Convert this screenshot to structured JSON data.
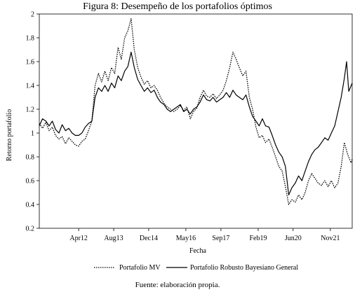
{
  "figure": {
    "title": "Figura 8: Desempeño de los portafolios óptimos",
    "source": "Fuente: elaboración propia."
  },
  "chart_data": {
    "type": "line",
    "title": "Figura 8: Desempeño de los portafolios óptimos",
    "xlabel": "Fecha",
    "ylabel": "Retorno portafolio",
    "ylim": [
      0.2,
      2.0
    ],
    "yticks": [
      0.2,
      0.4,
      0.6,
      0.8,
      1,
      1.2,
      1.4,
      1.6,
      1.8,
      2
    ],
    "xlim": [
      "2010-10-01",
      "2022-09-01"
    ],
    "xticks": [
      {
        "date": "2012-04-01",
        "label": "Apr12"
      },
      {
        "date": "2013-08-01",
        "label": "Aug13"
      },
      {
        "date": "2014-12-01",
        "label": "Dec14"
      },
      {
        "date": "2016-05-01",
        "label": "May16"
      },
      {
        "date": "2017-09-01",
        "label": "Sep17"
      },
      {
        "date": "2019-02-01",
        "label": "Feb19"
      },
      {
        "date": "2020-06-01",
        "label": "Jun20"
      },
      {
        "date": "2021-11-01",
        "label": "Nov21"
      }
    ],
    "grid": false,
    "legend_position": "bottom-center",
    "series": [
      {
        "name": "Portafolio MV",
        "style": "dotted",
        "color": "#000000",
        "points": [
          [
            "2010-10-01",
            1.08
          ],
          [
            "2010-11-15",
            1.04
          ],
          [
            "2011-01-01",
            1.09
          ],
          [
            "2011-02-15",
            1.02
          ],
          [
            "2011-04-01",
            1.05
          ],
          [
            "2011-05-15",
            0.98
          ],
          [
            "2011-07-01",
            0.95
          ],
          [
            "2011-08-15",
            0.97
          ],
          [
            "2011-10-01",
            0.91
          ],
          [
            "2011-11-15",
            0.96
          ],
          [
            "2012-01-01",
            0.93
          ],
          [
            "2012-02-15",
            0.9
          ],
          [
            "2012-04-01",
            0.89
          ],
          [
            "2012-05-15",
            0.93
          ],
          [
            "2012-07-01",
            0.95
          ],
          [
            "2012-08-15",
            1.02
          ],
          [
            "2012-10-01",
            1.1
          ],
          [
            "2012-11-15",
            1.4
          ],
          [
            "2013-01-01",
            1.5
          ],
          [
            "2013-02-15",
            1.43
          ],
          [
            "2013-04-01",
            1.52
          ],
          [
            "2013-05-15",
            1.44
          ],
          [
            "2013-07-01",
            1.55
          ],
          [
            "2013-08-15",
            1.5
          ],
          [
            "2013-10-01",
            1.72
          ],
          [
            "2013-11-15",
            1.62
          ],
          [
            "2014-01-01",
            1.8
          ],
          [
            "2014-02-15",
            1.86
          ],
          [
            "2014-04-01",
            1.96
          ],
          [
            "2014-05-15",
            1.7
          ],
          [
            "2014-07-01",
            1.55
          ],
          [
            "2014-08-15",
            1.47
          ],
          [
            "2014-10-01",
            1.41
          ],
          [
            "2014-11-15",
            1.44
          ],
          [
            "2015-01-01",
            1.38
          ],
          [
            "2015-02-15",
            1.4
          ],
          [
            "2015-04-01",
            1.36
          ],
          [
            "2015-05-15",
            1.3
          ],
          [
            "2015-07-01",
            1.25
          ],
          [
            "2015-08-15",
            1.22
          ],
          [
            "2015-10-01",
            1.2
          ],
          [
            "2015-11-15",
            1.18
          ],
          [
            "2016-01-01",
            1.2
          ],
          [
            "2016-02-15",
            1.23
          ],
          [
            "2016-04-01",
            1.19
          ],
          [
            "2016-05-15",
            1.22
          ],
          [
            "2016-07-01",
            1.12
          ],
          [
            "2016-08-15",
            1.18
          ],
          [
            "2016-10-01",
            1.21
          ],
          [
            "2016-11-15",
            1.3
          ],
          [
            "2017-01-01",
            1.36
          ],
          [
            "2017-02-15",
            1.31
          ],
          [
            "2017-04-01",
            1.3
          ],
          [
            "2017-05-15",
            1.33
          ],
          [
            "2017-07-01",
            1.29
          ],
          [
            "2017-08-15",
            1.32
          ],
          [
            "2017-10-01",
            1.36
          ],
          [
            "2017-11-15",
            1.44
          ],
          [
            "2018-01-01",
            1.55
          ],
          [
            "2018-02-15",
            1.68
          ],
          [
            "2018-04-01",
            1.62
          ],
          [
            "2018-05-15",
            1.55
          ],
          [
            "2018-07-01",
            1.48
          ],
          [
            "2018-08-15",
            1.52
          ],
          [
            "2018-10-01",
            1.3
          ],
          [
            "2018-11-15",
            1.2
          ],
          [
            "2019-01-01",
            1.05
          ],
          [
            "2019-02-15",
            0.96
          ],
          [
            "2019-04-01",
            0.98
          ],
          [
            "2019-05-15",
            0.92
          ],
          [
            "2019-07-01",
            0.95
          ],
          [
            "2019-08-15",
            0.88
          ],
          [
            "2019-10-01",
            0.8
          ],
          [
            "2019-11-15",
            0.72
          ],
          [
            "2020-01-01",
            0.68
          ],
          [
            "2020-02-15",
            0.55
          ],
          [
            "2020-04-01",
            0.4
          ],
          [
            "2020-05-15",
            0.44
          ],
          [
            "2020-07-01",
            0.42
          ],
          [
            "2020-08-15",
            0.48
          ],
          [
            "2020-10-01",
            0.44
          ],
          [
            "2020-11-15",
            0.5
          ],
          [
            "2021-01-01",
            0.6
          ],
          [
            "2021-02-15",
            0.66
          ],
          [
            "2021-04-01",
            0.62
          ],
          [
            "2021-05-15",
            0.58
          ],
          [
            "2021-07-01",
            0.56
          ],
          [
            "2021-08-15",
            0.6
          ],
          [
            "2021-10-01",
            0.55
          ],
          [
            "2021-11-15",
            0.6
          ],
          [
            "2022-01-01",
            0.54
          ],
          [
            "2022-02-15",
            0.58
          ],
          [
            "2022-04-01",
            0.72
          ],
          [
            "2022-05-15",
            0.92
          ],
          [
            "2022-07-01",
            0.82
          ],
          [
            "2022-08-15",
            0.75
          ],
          [
            "2022-09-01",
            0.78
          ]
        ]
      },
      {
        "name": "Portafolio Robusto Bayesiano General",
        "style": "solid",
        "color": "#000000",
        "points": [
          [
            "2010-10-01",
            1.06
          ],
          [
            "2010-11-15",
            1.12
          ],
          [
            "2011-01-01",
            1.1
          ],
          [
            "2011-02-15",
            1.06
          ],
          [
            "2011-04-01",
            1.1
          ],
          [
            "2011-05-15",
            1.03
          ],
          [
            "2011-07-01",
            1.0
          ],
          [
            "2011-08-15",
            1.07
          ],
          [
            "2011-10-01",
            1.02
          ],
          [
            "2011-11-15",
            1.04
          ],
          [
            "2012-01-01",
            1.0
          ],
          [
            "2012-02-15",
            0.98
          ],
          [
            "2012-04-01",
            0.98
          ],
          [
            "2012-05-15",
            1.0
          ],
          [
            "2012-07-01",
            1.05
          ],
          [
            "2012-08-15",
            1.08
          ],
          [
            "2012-10-01",
            1.1
          ],
          [
            "2012-11-15",
            1.3
          ],
          [
            "2013-01-01",
            1.38
          ],
          [
            "2013-02-15",
            1.35
          ],
          [
            "2013-04-01",
            1.4
          ],
          [
            "2013-05-15",
            1.35
          ],
          [
            "2013-07-01",
            1.42
          ],
          [
            "2013-08-15",
            1.38
          ],
          [
            "2013-10-01",
            1.48
          ],
          [
            "2013-11-15",
            1.44
          ],
          [
            "2014-01-01",
            1.52
          ],
          [
            "2014-02-15",
            1.56
          ],
          [
            "2014-04-01",
            1.68
          ],
          [
            "2014-05-15",
            1.55
          ],
          [
            "2014-07-01",
            1.45
          ],
          [
            "2014-08-15",
            1.4
          ],
          [
            "2014-10-01",
            1.35
          ],
          [
            "2014-11-15",
            1.38
          ],
          [
            "2015-01-01",
            1.34
          ],
          [
            "2015-02-15",
            1.36
          ],
          [
            "2015-04-01",
            1.3
          ],
          [
            "2015-05-15",
            1.26
          ],
          [
            "2015-07-01",
            1.24
          ],
          [
            "2015-08-15",
            1.2
          ],
          [
            "2015-10-01",
            1.18
          ],
          [
            "2015-11-15",
            1.2
          ],
          [
            "2016-01-01",
            1.22
          ],
          [
            "2016-02-15",
            1.24
          ],
          [
            "2016-04-01",
            1.18
          ],
          [
            "2016-05-15",
            1.2
          ],
          [
            "2016-07-01",
            1.16
          ],
          [
            "2016-08-15",
            1.2
          ],
          [
            "2016-10-01",
            1.22
          ],
          [
            "2016-11-15",
            1.26
          ],
          [
            "2017-01-01",
            1.32
          ],
          [
            "2017-02-15",
            1.28
          ],
          [
            "2017-04-01",
            1.27
          ],
          [
            "2017-05-15",
            1.3
          ],
          [
            "2017-07-01",
            1.26
          ],
          [
            "2017-08-15",
            1.28
          ],
          [
            "2017-10-01",
            1.3
          ],
          [
            "2017-11-15",
            1.34
          ],
          [
            "2018-01-01",
            1.3
          ],
          [
            "2018-02-15",
            1.36
          ],
          [
            "2018-04-01",
            1.32
          ],
          [
            "2018-05-15",
            1.3
          ],
          [
            "2018-07-01",
            1.28
          ],
          [
            "2018-08-15",
            1.32
          ],
          [
            "2018-10-01",
            1.22
          ],
          [
            "2018-11-15",
            1.14
          ],
          [
            "2019-01-01",
            1.1
          ],
          [
            "2019-02-15",
            1.06
          ],
          [
            "2019-04-01",
            1.12
          ],
          [
            "2019-05-15",
            1.06
          ],
          [
            "2019-07-01",
            1.05
          ],
          [
            "2019-08-15",
            0.98
          ],
          [
            "2019-10-01",
            0.9
          ],
          [
            "2019-11-15",
            0.84
          ],
          [
            "2020-01-01",
            0.8
          ],
          [
            "2020-02-15",
            0.72
          ],
          [
            "2020-04-01",
            0.48
          ],
          [
            "2020-05-15",
            0.54
          ],
          [
            "2020-07-01",
            0.58
          ],
          [
            "2020-08-15",
            0.64
          ],
          [
            "2020-10-01",
            0.6
          ],
          [
            "2020-11-15",
            0.68
          ],
          [
            "2021-01-01",
            0.76
          ],
          [
            "2021-02-15",
            0.82
          ],
          [
            "2021-04-01",
            0.86
          ],
          [
            "2021-05-15",
            0.88
          ],
          [
            "2021-07-01",
            0.92
          ],
          [
            "2021-08-15",
            0.96
          ],
          [
            "2021-10-01",
            0.94
          ],
          [
            "2021-11-15",
            1.0
          ],
          [
            "2022-01-01",
            1.06
          ],
          [
            "2022-02-15",
            1.18
          ],
          [
            "2022-04-01",
            1.3
          ],
          [
            "2022-05-15",
            1.46
          ],
          [
            "2022-06-15",
            1.6
          ],
          [
            "2022-07-15",
            1.35
          ],
          [
            "2022-09-01",
            1.42
          ]
        ]
      }
    ]
  }
}
